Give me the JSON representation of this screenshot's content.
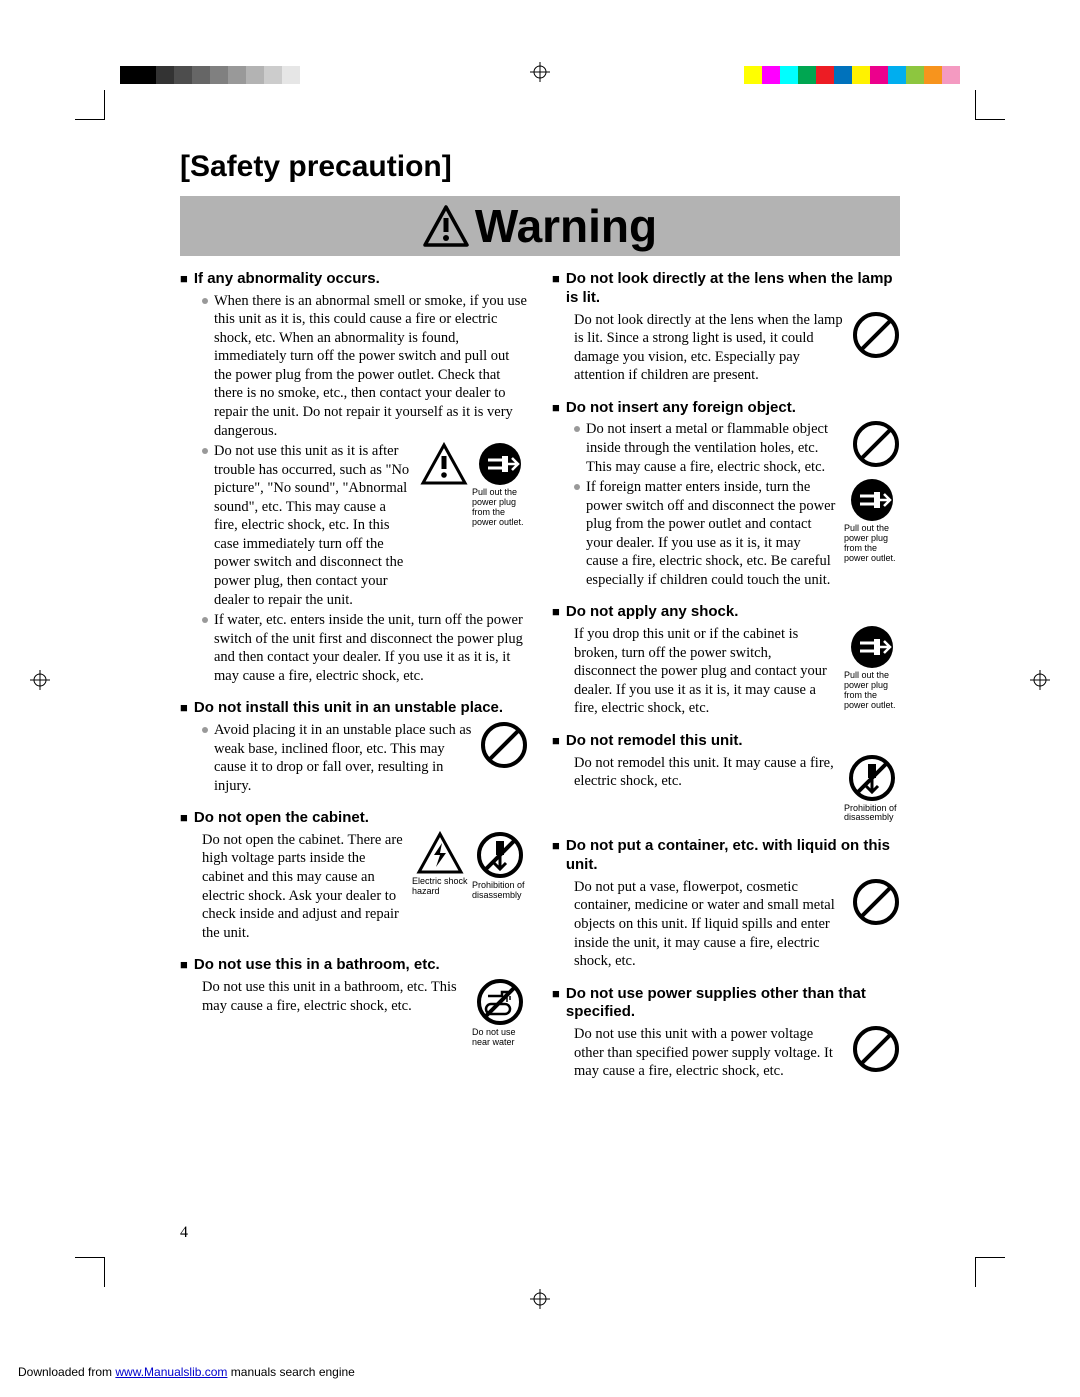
{
  "page_number": "4",
  "title": "[Safety precaution]",
  "warning_label": "Warning",
  "color_bar_left": [
    "#000000",
    "#000000",
    "#333333",
    "#4d4d4d",
    "#666666",
    "#808080",
    "#999999",
    "#b3b3b3",
    "#cccccc",
    "#e6e6e6"
  ],
  "color_bar_right": [
    "#ffff00",
    "#ff00ff",
    "#00ffff",
    "#00a651",
    "#ed1c24",
    "#0072bc",
    "#fff200",
    "#ec008c",
    "#00aeef",
    "#8dc63f",
    "#f7941d",
    "#f49ac1"
  ],
  "captions": {
    "pull_plug": "Pull out the power plug from the power outlet.",
    "shock": "Electric shock hazard",
    "disassembly": "Prohibition of disassembly",
    "no_water": "Do not use near water"
  },
  "left": [
    {
      "h": "If any abnormality occurs.",
      "bullets": [
        "When there is an abnormal smell or smoke, if you use this unit as it is, this could cause a fire or electric shock, etc.  When an abnormality is found, immediately turn off the power switch and pull out the power plug from the power outlet.  Check that there is no smoke, etc., then contact your dealer to repair the unit.  Do not repair it yourself as it is very dangerous.",
        "Do not use this unit as it is after trouble has occurred, such as \"No picture\", \"No sound\", \"Abnormal sound\", etc.  This may cause a fire, electric shock, etc.  In this case immediately turn off the power switch and disconnect the power plug, then contact your dealer to repair the unit.",
        "If water, etc. enters inside the unit, turn off the power switch of the unit first and disconnect the power plug and then contact your dealer.  If you use it as it is, it may cause a fire, electric shock, etc."
      ]
    },
    {
      "h": "Do not install this unit in an unstable place.",
      "bullets": [
        "Avoid placing it in an unstable place such as weak base, inclined floor, etc.  This may cause it to drop or fall over, resulting in injury."
      ]
    },
    {
      "h": "Do not open the cabinet.",
      "text": "Do not open the cabinet.  There are high voltage parts inside the cabinet and this may cause an electric shock.  Ask your dealer to check inside and adjust and repair the unit."
    },
    {
      "h": "Do not use this in a bathroom, etc.",
      "text": "Do not use this unit in a bathroom, etc.  This may cause a fire, electric shock, etc."
    }
  ],
  "right": [
    {
      "h": "Do not look directly at the lens when the lamp is lit.",
      "text": "Do not look directly at the lens when the lamp is lit.  Since a strong light is used, it could damage you vision, etc.  Especially pay attention if children are present."
    },
    {
      "h": "Do not insert any foreign object.",
      "bullets": [
        "Do not insert a metal or flammable object inside through the ventilation holes, etc.  This may cause a fire, electric shock, etc.",
        "If foreign matter enters inside, turn the power switch off and disconnect the power plug from the power outlet and contact your dealer.  If you use as it is, it may cause a fire, electric shock, etc.  Be careful especially if children could touch the unit."
      ]
    },
    {
      "h": "Do not apply any shock.",
      "text": "If you drop this unit or if the cabinet is broken, turn off the power switch, disconnect the power plug and contact your dealer.  If you use it as it is, it may cause a fire, electric shock, etc."
    },
    {
      "h": "Do not remodel this unit.",
      "text": "Do not remodel this unit.  It may cause a fire, electric shock, etc."
    },
    {
      "h": "Do not put a container, etc. with liquid on this unit.",
      "text": "Do not put a vase, flowerpot, cosmetic container, medicine or water and small metal objects on this unit.  If liquid spills and enter inside the unit, it may cause a fire, electric shock, etc."
    },
    {
      "h": "Do not use power supplies other than that specified.",
      "text": "Do not use this unit with a power voltage other than specified power supply voltage.  It may cause a fire, electric shock, etc."
    }
  ],
  "footer_pre": "Downloaded from ",
  "footer_link": "www.Manualslib.com",
  "footer_post": " manuals search engine"
}
